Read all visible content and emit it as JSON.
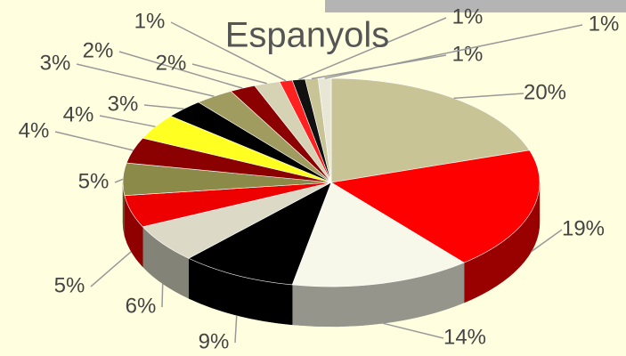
{
  "chart_data": {
    "type": "pie3d",
    "title": "Espanyols",
    "values": [
      20,
      19,
      14,
      9,
      6,
      5,
      5,
      4,
      4,
      3,
      3,
      2,
      2,
      1,
      1,
      1,
      1
    ],
    "value_labels": [
      "20%",
      "19%",
      "14%",
      "9%",
      "6%",
      "5%",
      "5%",
      "4%",
      "4%",
      "3%",
      "3%",
      "2%",
      "2%",
      "1%",
      "1%",
      "1%",
      "1%"
    ],
    "colors": [
      "#c8c496",
      "#ff0000",
      "#f8f8ea",
      "#000000",
      "#dcdac6",
      "#ee0000",
      "#8c8a48",
      "#8b0000",
      "#ffff22",
      "#000000",
      "#a09c60",
      "#8b0000",
      "#d6d2b4",
      "#ff2020",
      "#111111",
      "#c8c496",
      "#e8e6d4"
    ]
  }
}
